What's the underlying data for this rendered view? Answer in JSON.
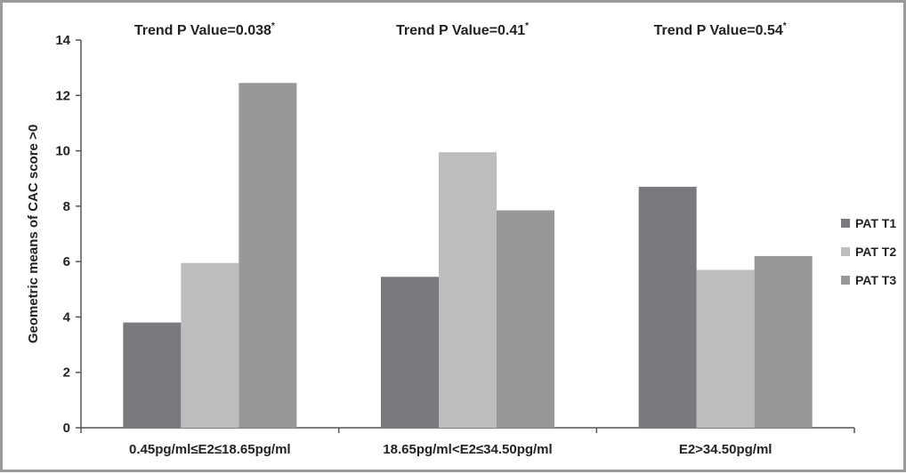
{
  "chart_data": {
    "type": "bar",
    "title": "",
    "xlabel": "",
    "ylabel": "Geometric means of CAC score >0",
    "ylim": [
      0,
      14
    ],
    "y_ticks": [
      "0",
      "2",
      "4",
      "6",
      "8",
      "10",
      "12",
      "14"
    ],
    "categories": [
      "0.45pg/ml≤E2≤18.65pg/ml",
      "18.65pg/ml<E2≤34.50pg/ml",
      "E2>34.50pg/ml"
    ],
    "series": [
      {
        "name": "PAT T1",
        "color": "#7a7a7e",
        "values": [
          3.8,
          5.45,
          8.7
        ]
      },
      {
        "name": "PAT T2",
        "color": "#bdbdc0",
        "values": [
          5.95,
          9.95,
          5.7
        ]
      },
      {
        "name": "PAT T3",
        "color": "#98989b",
        "values": [
          12.45,
          7.85,
          6.2
        ]
      }
    ],
    "annotations": [
      {
        "text": "Trend P Value=0.038",
        "sup": "*"
      },
      {
        "text": "Trend P Value=0.41",
        "sup": "*"
      },
      {
        "text": "Trend P Value=0.54",
        "sup": "*"
      }
    ],
    "legend_position": "right",
    "grid": false
  }
}
